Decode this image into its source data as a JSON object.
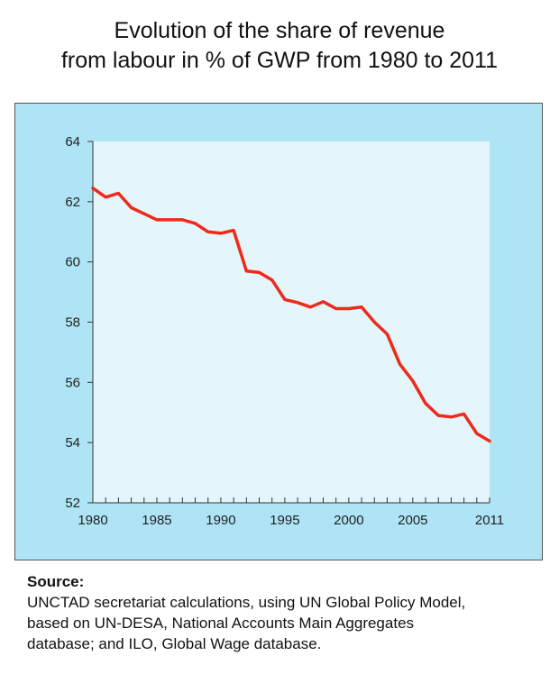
{
  "title": {
    "line1": "Evolution of the share of revenue",
    "line2": "from labour in % of GWP from 1980 to 2011"
  },
  "source": {
    "heading": "Source:",
    "lines": [
      "UNCTAD secretariat calculations, using UN Global Policy Model,",
      "based on UN-DESA, National Accounts Main Aggregates",
      "database; and ILO, Global Wage database."
    ]
  },
  "colors": {
    "frame_background": "#aee4f5",
    "plot_background": "#e4f6fb",
    "line": "#ee2a1a",
    "axis": "#333333"
  },
  "chart_data": {
    "type": "line",
    "title": "Evolution of the share of revenue from labour in % of GWP from 1980 to 2011",
    "xlabel": "",
    "ylabel": "",
    "xlim": [
      1980,
      2011
    ],
    "ylim": [
      52,
      64
    ],
    "grid": false,
    "y_ticks": [
      52,
      54,
      56,
      58,
      60,
      62,
      64
    ],
    "x_tick_labels": [
      "1980",
      "1985",
      "1990",
      "1995",
      "2000",
      "2005",
      "2011"
    ],
    "x_tick_label_values": [
      1980,
      1985,
      1990,
      1995,
      2000,
      2005,
      2011
    ],
    "series": [
      {
        "x": [
          1980,
          1981,
          1982,
          1983,
          1984,
          1985,
          1986,
          1987,
          1988,
          1989,
          1990,
          1991,
          1992,
          1993,
          1994,
          1995,
          1996,
          1997,
          1998,
          1999,
          2000,
          2001,
          2002,
          2003,
          2004,
          2005,
          2006,
          2007,
          2008,
          2009,
          2010,
          2011
        ],
        "values": [
          62.45,
          62.15,
          62.28,
          61.8,
          61.6,
          61.4,
          61.4,
          61.4,
          61.28,
          61.0,
          60.95,
          61.05,
          59.7,
          59.65,
          59.4,
          58.75,
          58.65,
          58.5,
          58.68,
          58.45,
          58.45,
          58.5,
          58.0,
          57.6,
          56.6,
          56.05,
          55.3,
          54.9,
          54.85,
          54.95,
          54.3,
          54.05
        ]
      }
    ]
  }
}
